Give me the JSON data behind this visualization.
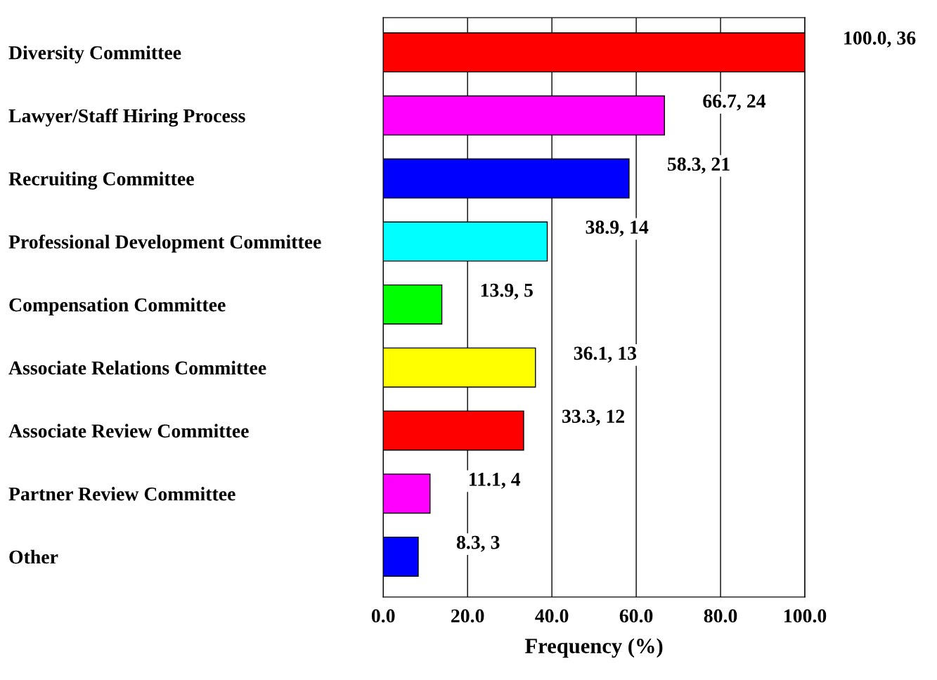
{
  "chart_data": {
    "type": "bar",
    "orientation": "horizontal",
    "xlabel": "Frequency (%)",
    "categories": [
      "Diversity Committee",
      "Lawyer/Staff Hiring Process",
      "Recruiting Committee",
      "Professional Development Committee",
      "Compensation Committee",
      "Associate Relations Committee",
      "Associate Review Committee",
      "Partner Review Committee",
      "Other"
    ],
    "values": [
      100.0,
      66.7,
      58.3,
      38.9,
      13.9,
      36.1,
      33.3,
      11.1,
      8.3
    ],
    "value_labels": [
      "100.0, 36",
      "66.7, 24",
      "58.3, 21",
      "38.9, 14",
      "13.9, 5",
      "36.1, 13",
      "33.3, 12",
      "11.1, 4",
      "8.3, 3"
    ],
    "colors": [
      "#ff0000",
      "#ff00ff",
      "#0000ff",
      "#00ffff",
      "#00ff00",
      "#ffff00",
      "#ff0000",
      "#ff00ff",
      "#0000ff"
    ],
    "xlim": [
      0,
      100
    ],
    "xticks": [
      {
        "value": 0,
        "label": "0.0"
      },
      {
        "value": 20,
        "label": "20.0"
      },
      {
        "value": 40,
        "label": "40.0"
      },
      {
        "value": 60,
        "label": "60.0"
      },
      {
        "value": 80,
        "label": "80.0"
      },
      {
        "value": 100,
        "label": "100.0"
      }
    ],
    "grid": "x",
    "legend": false
  }
}
